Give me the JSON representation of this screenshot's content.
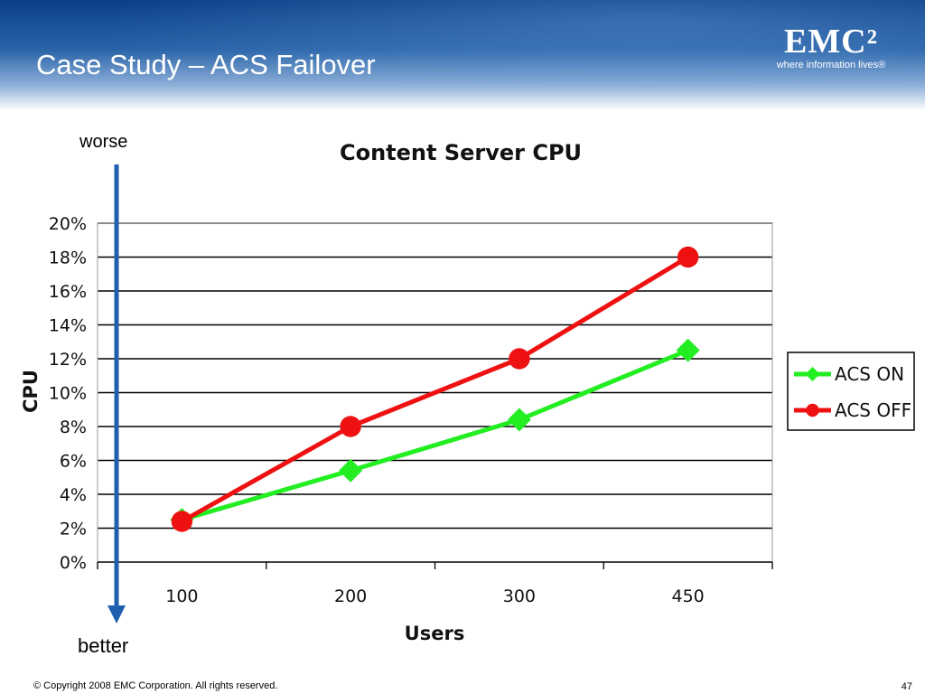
{
  "slide": {
    "title": "Case Study – ACS Failover",
    "worse_label": "worse",
    "better_label": "better",
    "copyright": "© Copyright 2008 EMC Corporation. All rights reserved.",
    "page_number": "47"
  },
  "logo": {
    "mark": "EMC²",
    "tagline": "where information lives®"
  },
  "colors": {
    "header_blue": "#0b3f86",
    "arrow_blue": "#1f5fb0",
    "acs_on": "#22ee22",
    "acs_off": "#ee1111"
  },
  "chart_data": {
    "type": "line",
    "title": "Content Server CPU",
    "xlabel": "Users",
    "ylabel": "CPU",
    "categories": [
      "100",
      "200",
      "300",
      "450"
    ],
    "ylim": [
      0,
      20
    ],
    "yticks": [
      "0%",
      "2%",
      "4%",
      "6%",
      "8%",
      "10%",
      "12%",
      "14%",
      "16%",
      "18%",
      "20%"
    ],
    "grid": true,
    "legend_position": "right",
    "series": [
      {
        "name": "ACS ON",
        "values": [
          2.5,
          5.4,
          8.4,
          12.5
        ],
        "marker": "diamond"
      },
      {
        "name": "ACS OFF",
        "values": [
          2.4,
          8.0,
          12.0,
          18.0
        ],
        "marker": "circle"
      }
    ]
  }
}
